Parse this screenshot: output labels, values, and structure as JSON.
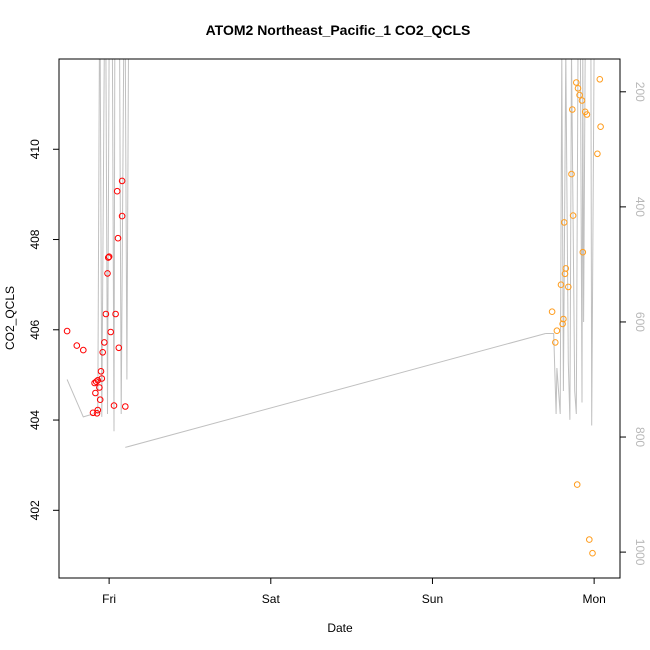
{
  "chart_data": {
    "type": "scatter",
    "title": "ATOM2 Northeast_Pacific_1 CO2_QCLS",
    "xlabel": "Date",
    "ylabel": "CO2_QCLS",
    "x_ticks": [
      {
        "label": "Fri",
        "value": 0
      },
      {
        "label": "Sat",
        "value": 1
      },
      {
        "label": "Sun",
        "value": 2
      },
      {
        "label": "Mon",
        "value": 3
      }
    ],
    "xlim": [
      -0.31,
      3.16
    ],
    "ylim": [
      400.5,
      412
    ],
    "y_ticks": [
      402,
      404,
      406,
      408,
      410
    ],
    "y2_ticks": [
      200,
      400,
      600,
      800,
      1000
    ],
    "y2lim": [
      1045,
      143
    ],
    "grid": false,
    "series": [
      {
        "color": "#ff0000",
        "marker": "circle-open",
        "points": [
          [
            -0.26,
            405.97
          ],
          [
            -0.2,
            405.65
          ],
          [
            -0.16,
            405.55
          ],
          [
            -0.1,
            404.16
          ],
          [
            -0.09,
            404.82
          ],
          [
            -0.085,
            404.6
          ],
          [
            -0.08,
            404.85
          ],
          [
            -0.075,
            404.15
          ],
          [
            -0.07,
            404.88
          ],
          [
            -0.07,
            404.22
          ],
          [
            -0.06,
            404.72
          ],
          [
            -0.055,
            404.45
          ],
          [
            -0.05,
            405.08
          ],
          [
            -0.045,
            404.92
          ],
          [
            -0.04,
            405.5
          ],
          [
            -0.03,
            405.72
          ],
          [
            -0.02,
            406.35
          ],
          [
            -0.01,
            407.25
          ],
          [
            -0.005,
            407.6
          ],
          [
            0.0,
            407.62
          ],
          [
            0.01,
            405.95
          ],
          [
            0.03,
            404.32
          ],
          [
            0.04,
            406.35
          ],
          [
            0.05,
            409.07
          ],
          [
            0.055,
            408.03
          ],
          [
            0.06,
            405.6
          ],
          [
            0.08,
            409.3
          ],
          [
            0.08,
            408.52
          ],
          [
            0.1,
            404.3
          ]
        ]
      },
      {
        "color": "#ff9d1e",
        "marker": "circle-open",
        "points": [
          [
            2.74,
            406.4
          ],
          [
            2.76,
            405.72
          ],
          [
            2.77,
            405.98
          ],
          [
            2.795,
            407
          ],
          [
            2.805,
            406.13
          ],
          [
            2.81,
            406.24
          ],
          [
            2.815,
            408.38
          ],
          [
            2.82,
            407.24
          ],
          [
            2.825,
            407.36
          ],
          [
            2.84,
            406.95
          ],
          [
            2.86,
            409.45
          ],
          [
            2.865,
            410.88
          ],
          [
            2.87,
            408.53
          ],
          [
            2.89,
            411.48
          ],
          [
            2.895,
            402.57
          ],
          [
            2.9,
            411.35
          ],
          [
            2.91,
            411.2
          ],
          [
            2.925,
            411.08
          ],
          [
            2.93,
            407.72
          ],
          [
            2.945,
            410.83
          ],
          [
            2.955,
            410.77
          ],
          [
            2.97,
            401.35
          ],
          [
            2.99,
            401.05
          ],
          [
            3.02,
            409.9
          ],
          [
            3.035,
            411.55
          ],
          [
            3.04,
            410.5
          ]
        ]
      }
    ],
    "line_series": {
      "color": "#c0c0c0",
      "axis": "right",
      "segments": [
        [
          [
            -0.26,
            700
          ],
          [
            -0.16,
            765
          ],
          [
            -0.1,
            760
          ]
        ],
        [
          [
            -0.07,
            760
          ],
          [
            -0.06,
            130
          ],
          [
            -0.055,
            130
          ],
          [
            -0.045,
            765
          ],
          [
            -0.03,
            130
          ],
          [
            -0.02,
            130
          ],
          [
            -0.01,
            760
          ],
          [
            0.0,
            130
          ],
          [
            0.02,
            130
          ],
          [
            0.03,
            790
          ],
          [
            0.035,
            130
          ],
          [
            0.065,
            130
          ],
          [
            0.075,
            760
          ],
          [
            0.09,
            130
          ],
          [
            0.1,
            130
          ],
          [
            0.11,
            700
          ],
          [
            0.12,
            130
          ]
        ],
        [
          [
            0.1,
            818
          ],
          [
            2.7,
            620
          ]
        ],
        [
          [
            2.7,
            620
          ],
          [
            2.75,
            620
          ],
          [
            2.765,
            760
          ],
          [
            2.77,
            680
          ],
          [
            2.79,
            760
          ],
          [
            2.8,
            130
          ],
          [
            2.81,
            720
          ],
          [
            2.825,
            130
          ],
          [
            2.84,
            670
          ],
          [
            2.85,
            770
          ],
          [
            2.86,
            130
          ],
          [
            2.88,
            720
          ],
          [
            2.89,
            760
          ],
          [
            2.9,
            130
          ],
          [
            2.915,
            130
          ],
          [
            2.925,
            740
          ],
          [
            2.93,
            130
          ],
          [
            2.935,
            600
          ],
          [
            2.945,
            130
          ],
          [
            2.96,
            130
          ],
          [
            2.97,
            130
          ],
          [
            2.98,
            120
          ],
          [
            2.985,
            780
          ],
          [
            3.0,
            130
          ],
          [
            3.01,
            130
          ],
          [
            3.02,
            130
          ]
        ]
      ]
    }
  }
}
